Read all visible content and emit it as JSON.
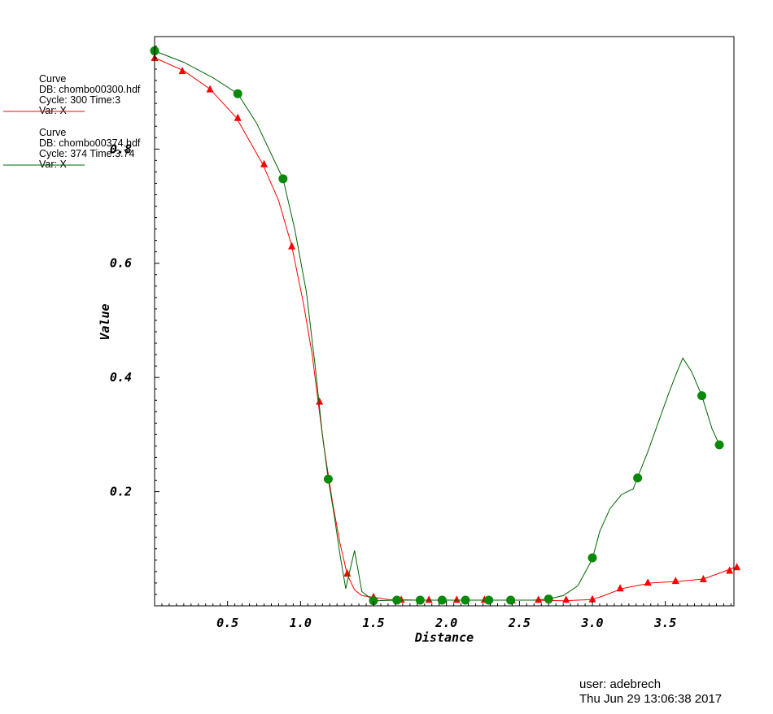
{
  "chart_data": {
    "type": "line",
    "xlabel": "Distance",
    "ylabel": "Value",
    "xlim": [
      0.0,
      3.97
    ],
    "ylim": [
      0.0,
      0.997
    ],
    "x_ticks": [
      {
        "v": 0.5,
        "label": "0.5"
      },
      {
        "v": 1.0,
        "label": "1.0"
      },
      {
        "v": 1.5,
        "label": "1.5"
      },
      {
        "v": 2.0,
        "label": "2.0"
      },
      {
        "v": 2.5,
        "label": "2.5"
      },
      {
        "v": 3.0,
        "label": "3.0"
      },
      {
        "v": 3.5,
        "label": "3.5"
      }
    ],
    "y_ticks": [
      {
        "v": 0.2,
        "label": "0.2"
      },
      {
        "v": 0.4,
        "label": "0.4"
      },
      {
        "v": 0.6,
        "label": "0.6"
      },
      {
        "v": 0.8,
        "label": "0.8"
      }
    ],
    "grid": false,
    "series": [
      {
        "color": "#ff0000",
        "marker": "triangle",
        "legend": [
          "Curve",
          "DB: chombo00300.hdf",
          "Cycle: 300      Time:3",
          "Var: X"
        ],
        "line": [
          [
            0.0,
            0.96
          ],
          [
            0.2,
            0.937
          ],
          [
            0.38,
            0.905
          ],
          [
            0.56,
            0.855
          ],
          [
            0.74,
            0.774
          ],
          [
            0.85,
            0.71
          ],
          [
            0.94,
            0.63
          ],
          [
            1.02,
            0.53
          ],
          [
            1.08,
            0.44
          ],
          [
            1.12,
            0.358
          ],
          [
            1.16,
            0.28
          ],
          [
            1.22,
            0.18
          ],
          [
            1.27,
            0.11
          ],
          [
            1.32,
            0.055
          ],
          [
            1.37,
            0.028
          ],
          [
            1.42,
            0.018
          ],
          [
            1.5,
            0.015
          ],
          [
            1.6,
            0.011
          ],
          [
            1.8,
            0.01
          ],
          [
            2.0,
            0.01
          ],
          [
            2.3,
            0.01
          ],
          [
            2.6,
            0.01
          ],
          [
            2.8,
            0.009
          ],
          [
            3.0,
            0.011
          ],
          [
            3.1,
            0.02
          ],
          [
            3.2,
            0.03
          ],
          [
            3.4,
            0.04
          ],
          [
            3.6,
            0.043
          ],
          [
            3.76,
            0.047
          ],
          [
            3.9,
            0.06
          ],
          [
            3.97,
            0.067
          ]
        ],
        "markers": [
          [
            0.0,
            0.96
          ],
          [
            0.19,
            0.937
          ],
          [
            0.38,
            0.905
          ],
          [
            0.57,
            0.855
          ],
          [
            0.75,
            0.774
          ],
          [
            0.94,
            0.63
          ],
          [
            1.13,
            0.358
          ],
          [
            1.32,
            0.057
          ],
          [
            1.5,
            0.016
          ],
          [
            1.69,
            0.011
          ],
          [
            1.88,
            0.011
          ],
          [
            2.07,
            0.011
          ],
          [
            2.26,
            0.011
          ],
          [
            2.45,
            0.01
          ],
          [
            2.63,
            0.011
          ],
          [
            2.82,
            0.011
          ],
          [
            3.0,
            0.012
          ],
          [
            3.19,
            0.031
          ],
          [
            3.38,
            0.041
          ],
          [
            3.57,
            0.044
          ],
          [
            3.76,
            0.047
          ],
          [
            3.94,
            0.062
          ],
          [
            3.99,
            0.068
          ]
        ]
      },
      {
        "color": "#006400",
        "marker": "circle",
        "legend": [
          "Curve",
          "DB: chombo00374.hdf",
          "Cycle: 374      Time:3.74",
          "Var: X"
        ],
        "line": [
          [
            0.0,
            0.972
          ],
          [
            0.2,
            0.952
          ],
          [
            0.4,
            0.925
          ],
          [
            0.57,
            0.897
          ],
          [
            0.7,
            0.845
          ],
          [
            0.82,
            0.78
          ],
          [
            0.88,
            0.748
          ],
          [
            0.96,
            0.66
          ],
          [
            1.04,
            0.55
          ],
          [
            1.1,
            0.42
          ],
          [
            1.15,
            0.3
          ],
          [
            1.19,
            0.222
          ],
          [
            1.23,
            0.16
          ],
          [
            1.27,
            0.09
          ],
          [
            1.31,
            0.03
          ],
          [
            1.37,
            0.097
          ],
          [
            1.42,
            0.025
          ],
          [
            1.5,
            0.009
          ],
          [
            1.66,
            0.01
          ],
          [
            1.8,
            0.01
          ],
          [
            2.0,
            0.01
          ],
          [
            2.2,
            0.01
          ],
          [
            2.44,
            0.01
          ],
          [
            2.6,
            0.01
          ],
          [
            2.7,
            0.012
          ],
          [
            2.8,
            0.018
          ],
          [
            2.9,
            0.035
          ],
          [
            3.0,
            0.082
          ],
          [
            3.05,
            0.13
          ],
          [
            3.12,
            0.17
          ],
          [
            3.2,
            0.195
          ],
          [
            3.28,
            0.205
          ],
          [
            3.31,
            0.225
          ],
          [
            3.38,
            0.27
          ],
          [
            3.45,
            0.32
          ],
          [
            3.52,
            0.37
          ],
          [
            3.58,
            0.41
          ],
          [
            3.62,
            0.434
          ],
          [
            3.68,
            0.41
          ],
          [
            3.75,
            0.368
          ],
          [
            3.82,
            0.31
          ],
          [
            3.87,
            0.282
          ]
        ],
        "markers": [
          [
            0.0,
            0.972
          ],
          [
            0.57,
            0.897
          ],
          [
            0.88,
            0.748
          ],
          [
            1.19,
            0.222
          ],
          [
            1.5,
            0.009
          ],
          [
            1.66,
            0.01
          ],
          [
            1.82,
            0.01
          ],
          [
            1.97,
            0.01
          ],
          [
            2.13,
            0.01
          ],
          [
            2.29,
            0.01
          ],
          [
            2.44,
            0.01
          ],
          [
            2.7,
            0.012
          ],
          [
            3.0,
            0.084
          ],
          [
            3.31,
            0.224
          ],
          [
            3.75,
            0.368
          ],
          [
            3.87,
            0.282
          ]
        ]
      }
    ]
  },
  "footer": {
    "user": "user: adebrech",
    "timestamp": "Thu Jun 29 13:06:38 2017"
  }
}
